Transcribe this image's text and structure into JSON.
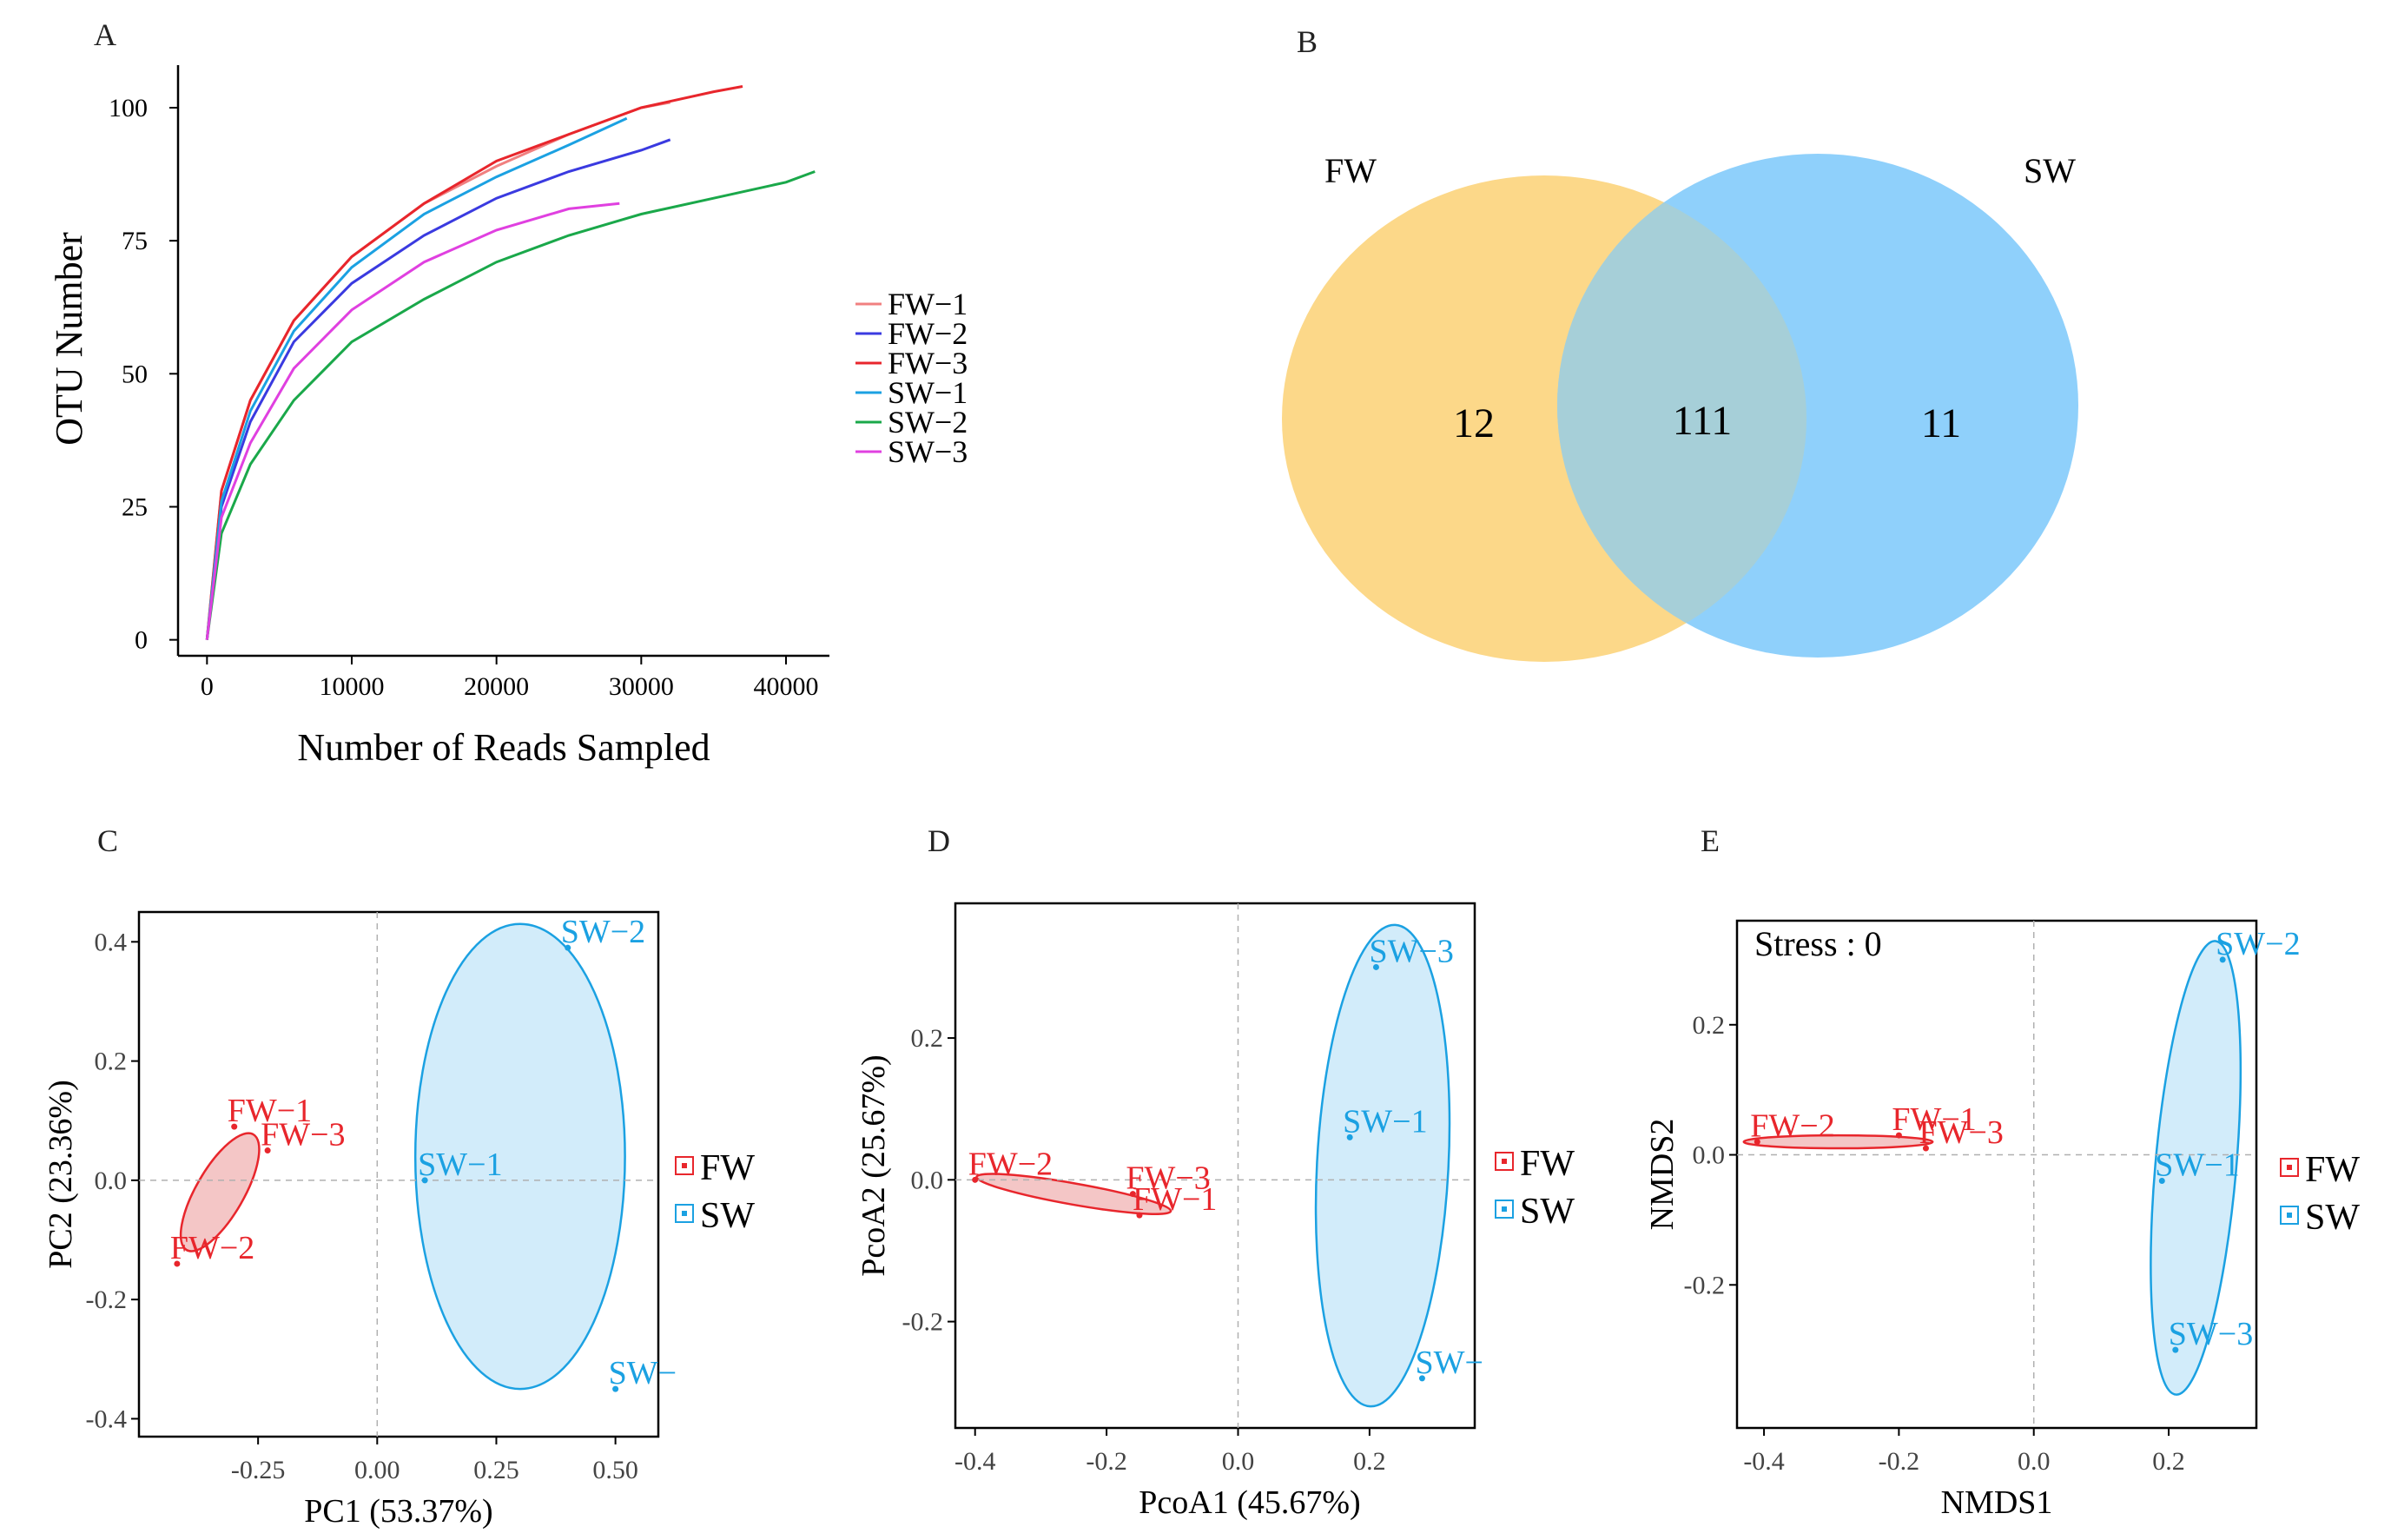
{
  "colors": {
    "fw": "#e8262c",
    "sw": "#1ba1e2",
    "fw_fill": "#f4c6c6",
    "sw_fill": "#d2ecfa",
    "venn_fw": "#fcd889",
    "venn_sw": "#8fd0fb",
    "venn_overlap": "#a6cfd8",
    "axis": "#000000",
    "grid": "#b0b0b0",
    "panel_label": "#222222"
  },
  "chart_data": [
    {
      "panel": "A",
      "type": "line",
      "title": "",
      "xlabel": "Number of Reads Sampled",
      "ylabel": "OTU Number",
      "xlim": [
        -2000,
        43000
      ],
      "ylim": [
        -3,
        108
      ],
      "xticks": [
        0,
        10000,
        20000,
        30000,
        40000
      ],
      "yticks": [
        0,
        25,
        50,
        75,
        100
      ],
      "legend_position": "right",
      "series": [
        {
          "name": "FW−1",
          "color": "#f08080",
          "x": [
            0,
            1000,
            3000,
            6000,
            10000,
            15000,
            20000,
            25000,
            30000,
            32000
          ],
          "y": [
            0,
            28,
            45,
            60,
            72,
            82,
            89,
            95,
            100,
            101
          ]
        },
        {
          "name": "FW−2",
          "color": "#3a3ae0",
          "x": [
            0,
            1000,
            3000,
            6000,
            10000,
            15000,
            20000,
            25000,
            30000,
            32000
          ],
          "y": [
            0,
            25,
            41,
            56,
            67,
            76,
            83,
            88,
            92,
            94
          ]
        },
        {
          "name": "FW−3",
          "color": "#e8262c",
          "x": [
            0,
            1000,
            3000,
            6000,
            10000,
            15000,
            20000,
            25000,
            30000,
            35000,
            37000
          ],
          "y": [
            0,
            28,
            45,
            60,
            72,
            82,
            90,
            95,
            100,
            103,
            104
          ]
        },
        {
          "name": "SW−1",
          "color": "#1ba1e2",
          "x": [
            0,
            1000,
            3000,
            6000,
            10000,
            15000,
            20000,
            25000,
            29000
          ],
          "y": [
            0,
            26,
            43,
            58,
            70,
            80,
            87,
            93,
            98
          ]
        },
        {
          "name": "SW−2",
          "color": "#1aa84a",
          "x": [
            0,
            1000,
            3000,
            6000,
            10000,
            15000,
            20000,
            25000,
            30000,
            35000,
            40000,
            42000
          ],
          "y": [
            0,
            20,
            33,
            45,
            56,
            64,
            71,
            76,
            80,
            83,
            86,
            88
          ]
        },
        {
          "name": "SW−3",
          "color": "#e040e0",
          "x": [
            0,
            1000,
            3000,
            6000,
            10000,
            15000,
            20000,
            25000,
            28500
          ],
          "y": [
            0,
            23,
            37,
            51,
            62,
            71,
            77,
            81,
            82
          ]
        }
      ]
    },
    {
      "panel": "B",
      "type": "venn",
      "sets": [
        {
          "name": "FW",
          "unique": 12
        },
        {
          "name": "SW",
          "unique": 11
        }
      ],
      "intersection": 111
    },
    {
      "panel": "C",
      "type": "scatter",
      "xlabel": "PC1 (53.37%)",
      "ylabel": "PC2 (23.36%)",
      "xlim": [
        -0.5,
        0.59
      ],
      "ylim": [
        -0.43,
        0.45
      ],
      "xticks": [
        -0.25,
        0.0,
        0.25,
        0.5
      ],
      "xticklabels": [
        "-0.25",
        "0.00",
        "0.25",
        "0.50"
      ],
      "yticks": [
        -0.4,
        -0.2,
        0.0,
        0.2,
        0.4
      ],
      "yticklabels": [
        "-0.4",
        "-0.2",
        "0.0",
        "0.2",
        "0.4"
      ],
      "reference_lines": {
        "x": 0,
        "y": 0
      },
      "points": [
        {
          "label": "FW−1",
          "group": "FW",
          "x": -0.3,
          "y": 0.09
        },
        {
          "label": "FW−3",
          "group": "FW",
          "x": -0.23,
          "y": 0.05
        },
        {
          "label": "FW−2",
          "group": "FW",
          "x": -0.42,
          "y": -0.14
        },
        {
          "label": "SW−2",
          "group": "SW",
          "x": 0.4,
          "y": 0.39
        },
        {
          "label": "SW−1",
          "group": "SW",
          "x": 0.1,
          "y": 0.0
        },
        {
          "label": "SW−",
          "group": "SW",
          "x": 0.5,
          "y": -0.35
        }
      ],
      "ellipses": [
        {
          "group": "FW",
          "cx": -0.33,
          "cy": -0.02,
          "rx": 0.14,
          "ry": 0.04,
          "angle_deg": 60
        },
        {
          "group": "SW",
          "cx": 0.3,
          "cy": 0.04,
          "rx": 0.22,
          "ry": 0.39,
          "angle_deg": 0
        }
      ],
      "legend_position": "right",
      "legend": [
        "FW",
        "SW"
      ]
    },
    {
      "panel": "D",
      "type": "scatter",
      "xlabel": "PcoA1 (45.67%)",
      "ylabel": "PcoA2 (25.67%)",
      "xlim": [
        -0.43,
        0.36
      ],
      "ylim": [
        -0.35,
        0.39
      ],
      "xticks": [
        -0.4,
        -0.2,
        0.0,
        0.2
      ],
      "xticklabels": [
        "-0.4",
        "-0.2",
        "0.0",
        "0.2"
      ],
      "yticks": [
        -0.2,
        0.0,
        0.2
      ],
      "yticklabels": [
        "-0.2",
        "0.0",
        "0.2"
      ],
      "reference_lines": {
        "x": 0,
        "y": 0
      },
      "points": [
        {
          "label": "FW−2",
          "group": "FW",
          "x": -0.4,
          "y": 0.0
        },
        {
          "label": "FW−3",
          "group": "FW",
          "x": -0.16,
          "y": -0.02
        },
        {
          "label": "FW−1",
          "group": "FW",
          "x": -0.15,
          "y": -0.05
        },
        {
          "label": "SW−3",
          "group": "SW",
          "x": 0.21,
          "y": 0.3
        },
        {
          "label": "SW−1",
          "group": "SW",
          "x": 0.17,
          "y": 0.06
        },
        {
          "label": "SW−",
          "group": "SW",
          "x": 0.28,
          "y": -0.28
        }
      ],
      "ellipses": [
        {
          "group": "FW",
          "cx": -0.25,
          "cy": -0.02,
          "rx": 0.15,
          "ry": 0.015,
          "angle_deg": -10
        },
        {
          "group": "SW",
          "cx": 0.22,
          "cy": 0.02,
          "rx": 0.1,
          "ry": 0.34,
          "angle_deg": -3
        }
      ],
      "legend_position": "right",
      "legend": [
        "FW",
        "SW"
      ]
    },
    {
      "panel": "E",
      "type": "scatter",
      "annotation": "Stress : 0",
      "xlabel": "NMDS1",
      "ylabel": "NMDS2",
      "xlim": [
        -0.44,
        0.33
      ],
      "ylim": [
        -0.42,
        0.36
      ],
      "xticks": [
        -0.4,
        -0.2,
        0.0,
        0.2
      ],
      "xticklabels": [
        "-0.4",
        "-0.2",
        "0.0",
        "0.2"
      ],
      "yticks": [
        -0.2,
        0.0,
        0.2
      ],
      "yticklabels": [
        "-0.2",
        "0.0",
        "0.2"
      ],
      "reference_lines": {
        "x": 0,
        "y": 0
      },
      "points": [
        {
          "label": "FW−2",
          "group": "FW",
          "x": -0.41,
          "y": 0.02
        },
        {
          "label": "FW−1",
          "group": "FW",
          "x": -0.2,
          "y": 0.03
        },
        {
          "label": "FW−3",
          "group": "FW",
          "x": -0.16,
          "y": 0.01
        },
        {
          "label": "SW−2",
          "group": "SW",
          "x": 0.28,
          "y": 0.3
        },
        {
          "label": "SW−1",
          "group": "SW",
          "x": 0.19,
          "y": -0.04
        },
        {
          "label": "SW−3",
          "group": "SW",
          "x": 0.21,
          "y": -0.3
        }
      ],
      "ellipses": [
        {
          "group": "FW",
          "cx": -0.29,
          "cy": 0.02,
          "rx": 0.14,
          "ry": 0.01,
          "angle_deg": 0
        },
        {
          "group": "SW",
          "cx": 0.24,
          "cy": -0.02,
          "rx": 0.06,
          "ry": 0.35,
          "angle_deg": -5
        }
      ],
      "legend_position": "right",
      "legend": [
        "FW",
        "SW"
      ]
    }
  ]
}
